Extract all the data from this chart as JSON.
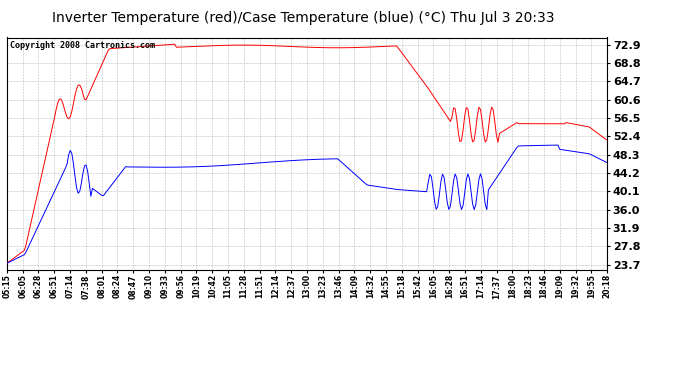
{
  "title": "Inverter Temperature (red)/Case Temperature (blue) (°C) Thu Jul 3 20:33",
  "copyright": "Copyright 2008 Cartronics.com",
  "background_color": "#ffffff",
  "plot_bg_color": "#ffffff",
  "grid_color": "#bbbbbb",
  "yticks": [
    23.7,
    27.8,
    31.9,
    36.0,
    40.1,
    44.2,
    48.3,
    52.4,
    56.5,
    60.6,
    64.7,
    68.8,
    72.9
  ],
  "ylim": [
    22.5,
    74.5
  ],
  "x_labels": [
    "05:15",
    "06:05",
    "06:28",
    "06:51",
    "07:14",
    "07:38",
    "08:01",
    "08:24",
    "08:47",
    "09:10",
    "09:33",
    "09:56",
    "10:19",
    "10:42",
    "11:05",
    "11:28",
    "11:51",
    "12:14",
    "12:37",
    "13:00",
    "13:23",
    "13:46",
    "14:09",
    "14:32",
    "14:55",
    "15:18",
    "15:42",
    "16:05",
    "16:28",
    "16:51",
    "17:14",
    "17:37",
    "18:00",
    "18:23",
    "18:46",
    "19:09",
    "19:32",
    "19:55",
    "20:18"
  ],
  "title_fontsize": 10,
  "copyright_fontsize": 6,
  "ytick_fontsize": 8,
  "xtick_fontsize": 5.5
}
